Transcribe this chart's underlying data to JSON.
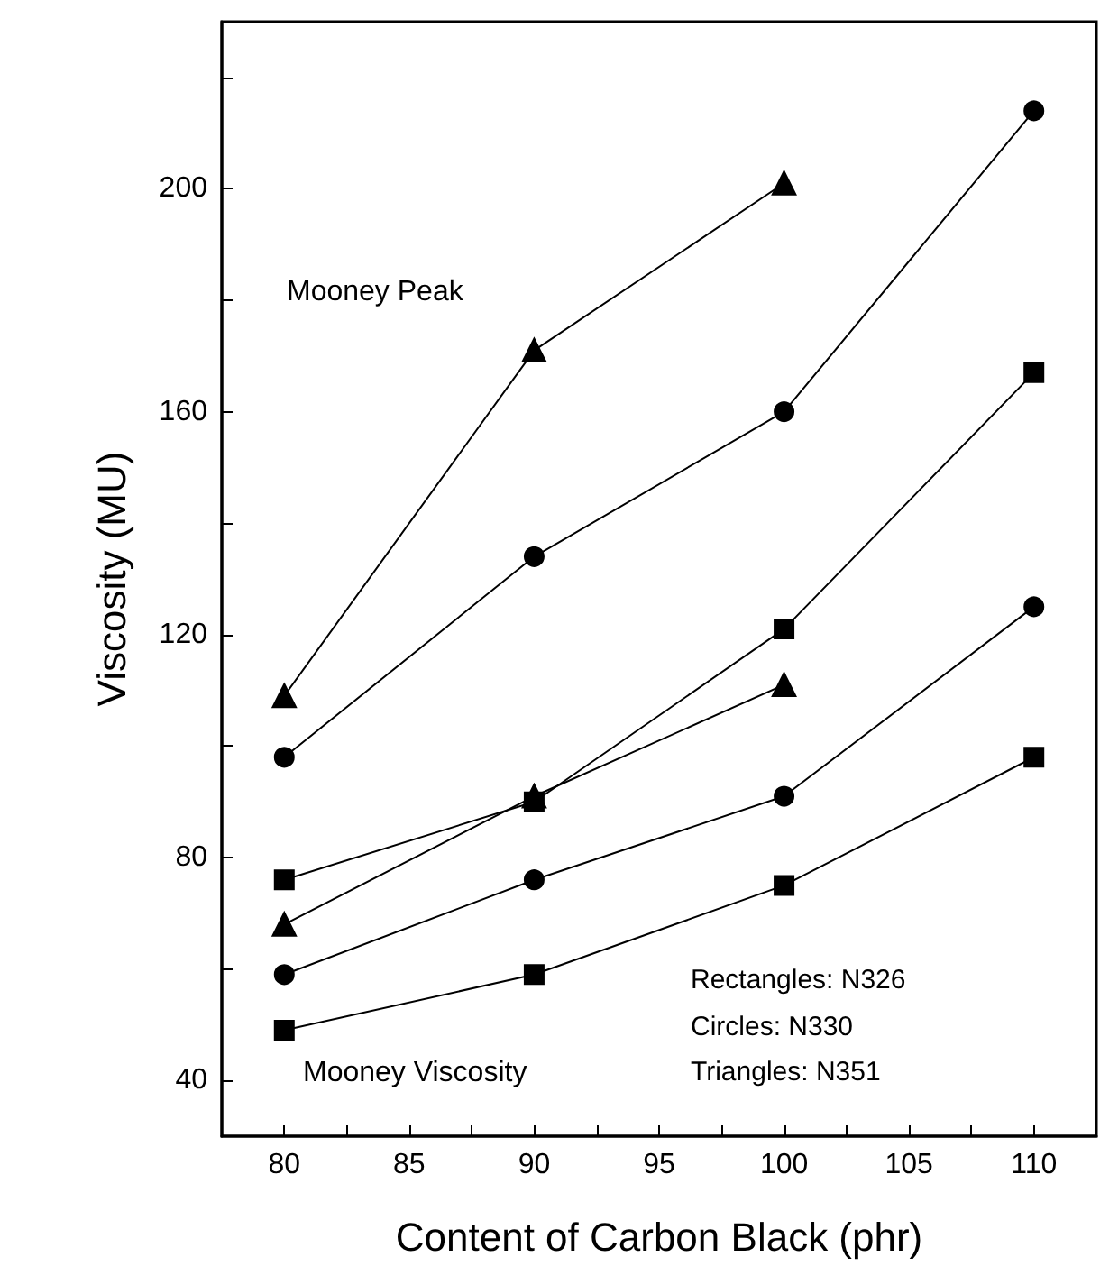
{
  "chart_data": {
    "type": "line",
    "xlabel": "Content of Carbon Black (phr)",
    "ylabel": "Viscosity (MU)",
    "x": [
      80,
      90,
      100,
      110
    ],
    "xlim": [
      77.5,
      112.5
    ],
    "xticks": [
      80,
      {
        "value": 82.5,
        "label": null
      },
      85,
      {
        "value": 87.5,
        "label": null
      },
      90,
      {
        "value": 92.5,
        "label": null
      },
      95,
      {
        "value": 97.5,
        "label": null
      },
      100,
      {
        "value": 102.5,
        "label": null
      },
      105,
      {
        "value": 107.5,
        "label": null
      },
      110
    ],
    "ylim": [
      30,
      230
    ],
    "yticks": [
      40,
      {
        "value": 60,
        "label": null
      },
      80,
      {
        "value": 100,
        "label": null
      },
      120,
      {
        "value": 140,
        "label": null
      },
      160,
      {
        "value": 180,
        "label": null
      },
      200,
      {
        "value": 220,
        "label": null
      }
    ],
    "grid": false,
    "line_style": "solid",
    "annotations": [
      "Mooney Peak",
      "Mooney Viscosity",
      "Rectangles: N326",
      "Circles: N330",
      "Triangles: N351"
    ],
    "series": [
      {
        "color": "#000000",
        "marker": "triangle",
        "values": [
          109,
          171,
          201,
          null
        ]
      },
      {
        "color": "#000000",
        "marker": "circle",
        "values": [
          98,
          134,
          160,
          214
        ]
      },
      {
        "color": "#000000",
        "marker": "square",
        "values": [
          76,
          90,
          121,
          167
        ]
      },
      {
        "color": "#000000",
        "marker": "triangle",
        "values": [
          68,
          91,
          111,
          null
        ]
      },
      {
        "color": "#000000",
        "marker": "circle",
        "values": [
          59,
          76,
          91,
          125
        ]
      },
      {
        "color": "#000000",
        "marker": "square",
        "values": [
          49,
          59,
          75,
          98
        ]
      }
    ]
  }
}
